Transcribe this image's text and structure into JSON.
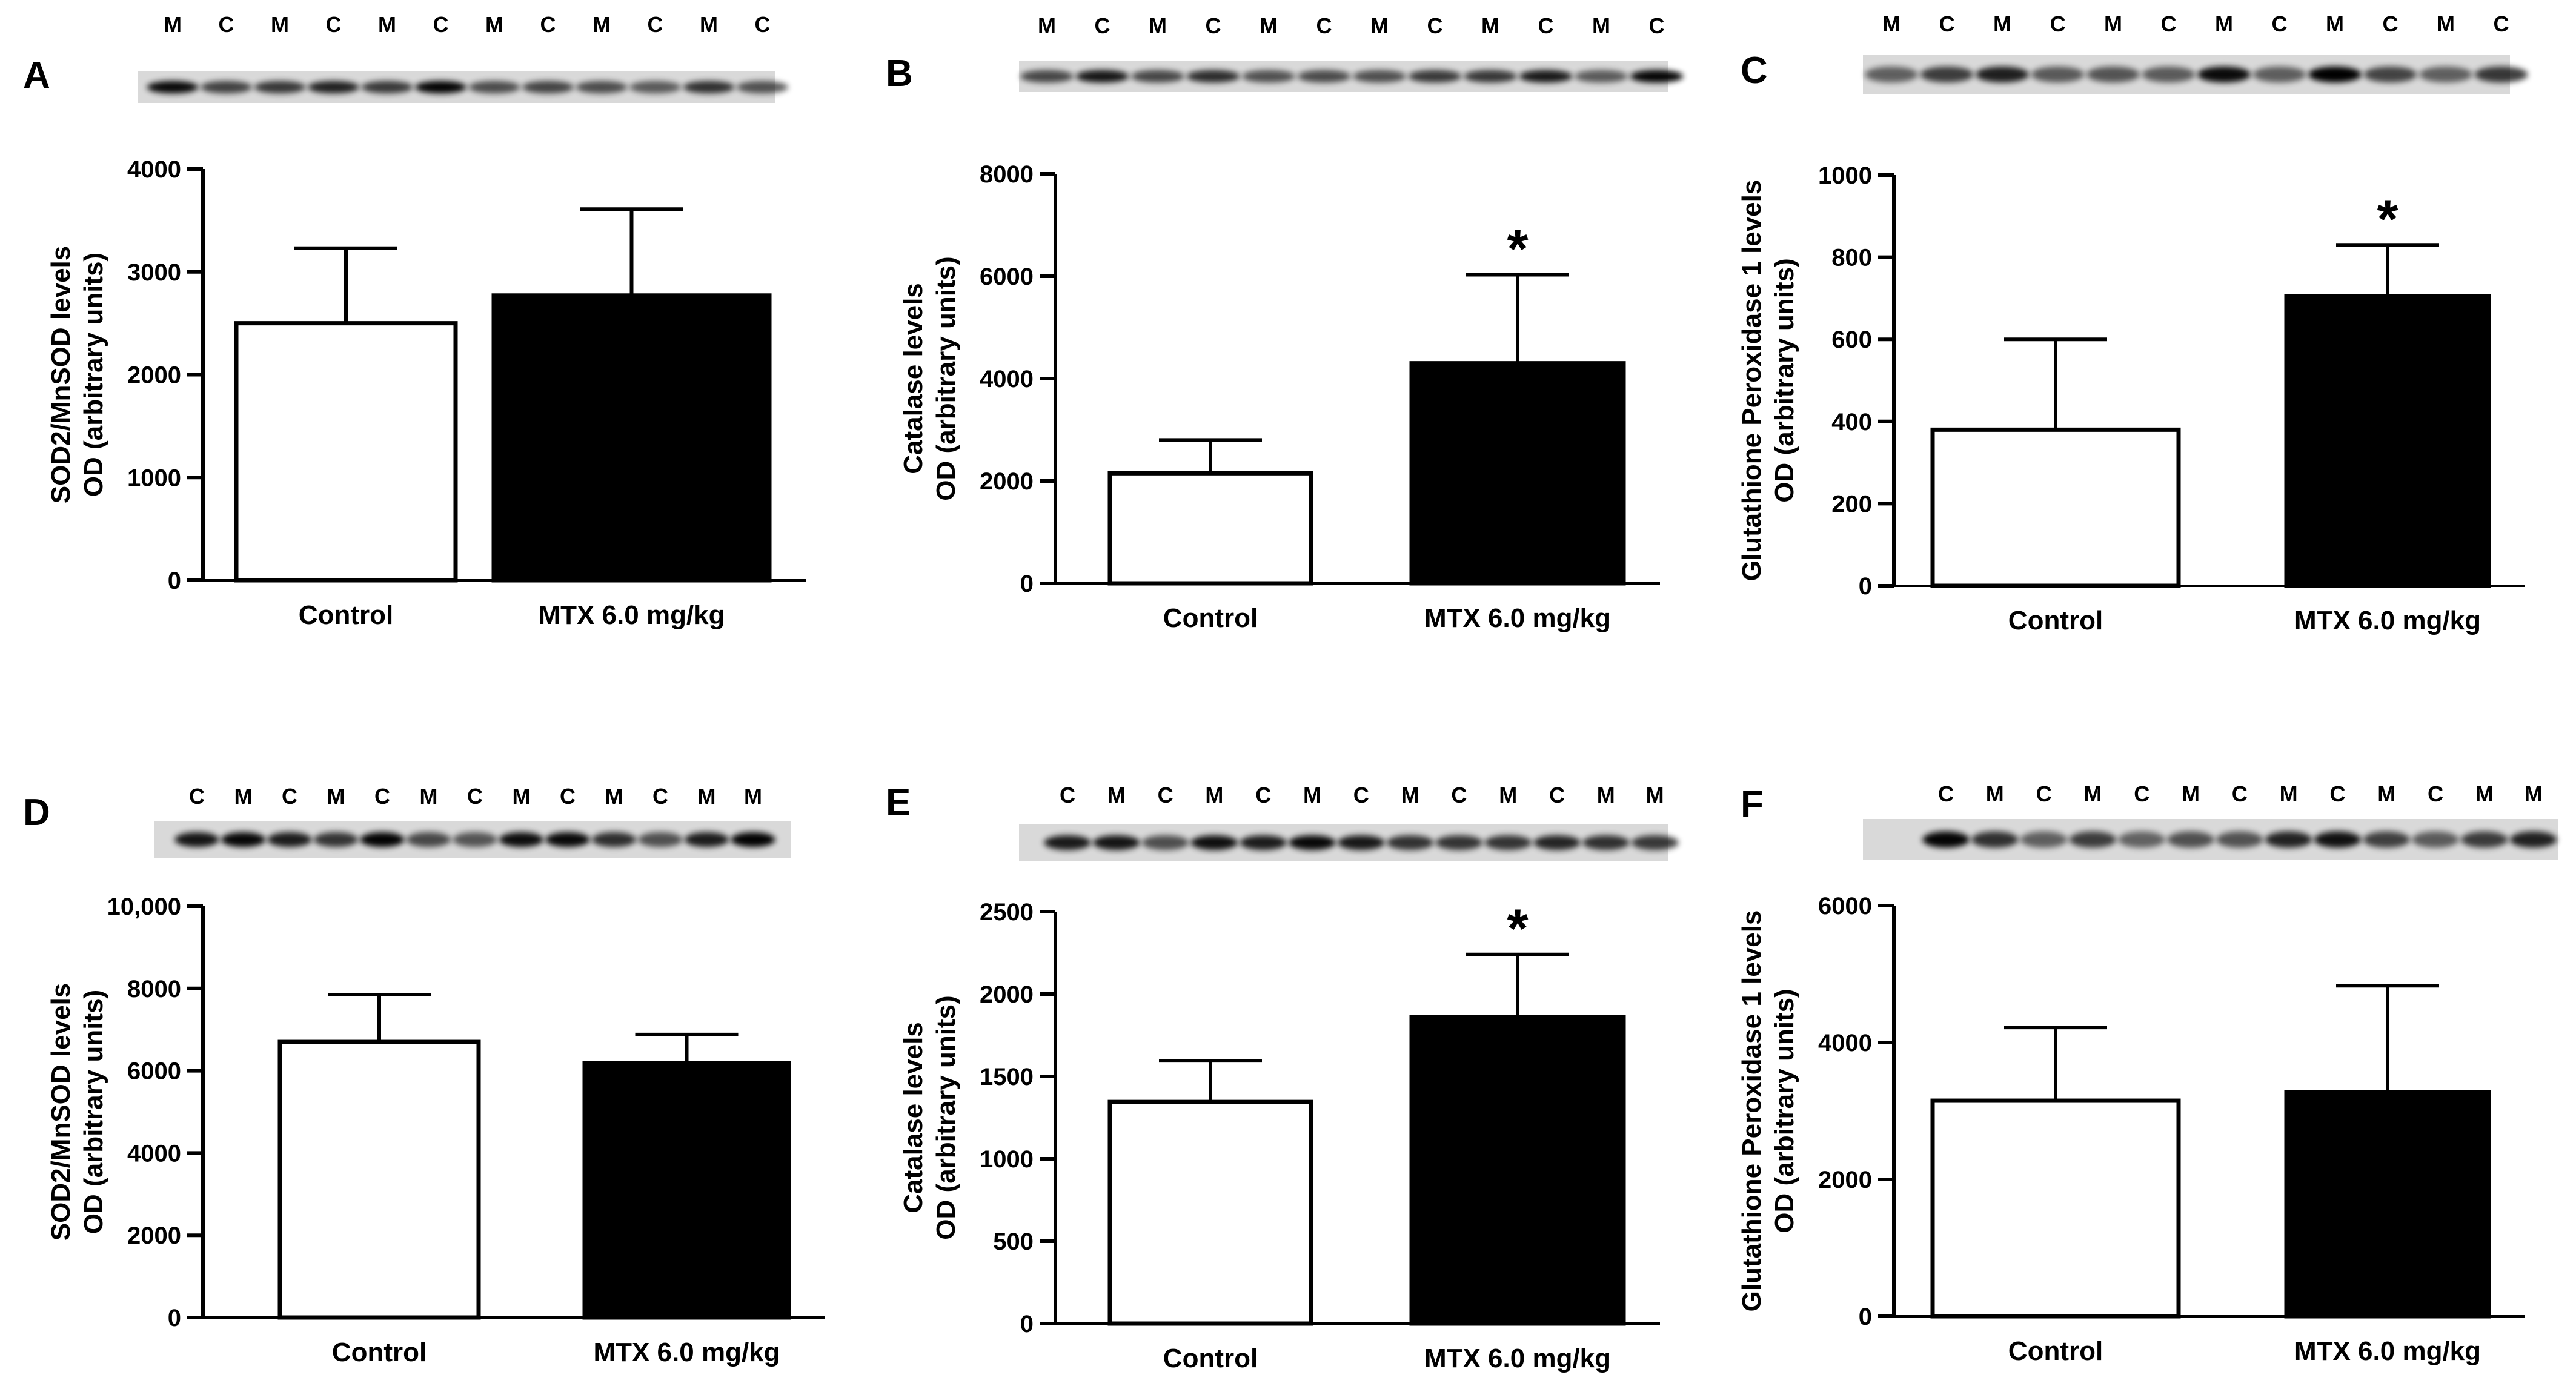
{
  "figure": {
    "lane_letter_control": "C",
    "lane_letter_mtx": "M"
  },
  "chart_data": [
    {
      "panel": "A",
      "type": "bar",
      "blot_lanes": [
        "M",
        "C",
        "M",
        "C",
        "M",
        "C",
        "M",
        "C",
        "M",
        "C",
        "M",
        "C"
      ],
      "categories": [
        "Control",
        "MTX 6.0 mg/kg"
      ],
      "values": [
        2500,
        2770
      ],
      "errors": [
        730,
        840
      ],
      "significant": [
        false,
        false
      ],
      "ylabel": [
        "SOD2/MnSOD levels",
        "OD (arbitrary units)"
      ],
      "ylim": [
        0,
        4000
      ],
      "yticks": [
        0,
        1000,
        2000,
        3000,
        4000
      ],
      "ytick_labels": [
        "0",
        "1000",
        "2000",
        "3000",
        "4000"
      ]
    },
    {
      "panel": "B",
      "type": "bar",
      "blot_lanes": [
        "M",
        "C",
        "M",
        "C",
        "M",
        "C",
        "M",
        "C",
        "M",
        "C",
        "M",
        "C"
      ],
      "categories": [
        "Control",
        "MTX 6.0 mg/kg"
      ],
      "values": [
        2150,
        4300
      ],
      "errors": [
        650,
        1730
      ],
      "significant": [
        false,
        true
      ],
      "ylabel": [
        "Catalase levels",
        "OD (arbitrary units)"
      ],
      "ylim": [
        0,
        8000
      ],
      "yticks": [
        0,
        2000,
        4000,
        6000,
        8000
      ],
      "ytick_labels": [
        "0",
        "2000",
        "4000",
        "6000",
        "8000"
      ]
    },
    {
      "panel": "C",
      "type": "bar",
      "blot_lanes": [
        "M",
        "C",
        "M",
        "C",
        "M",
        "C",
        "M",
        "C",
        "M",
        "C",
        "M",
        "C"
      ],
      "categories": [
        "Control",
        "MTX 6.0 mg/kg"
      ],
      "values": [
        380,
        705
      ],
      "errors": [
        220,
        125
      ],
      "significant": [
        false,
        true
      ],
      "ylabel": [
        "Glutathione Peroxidase 1 levels",
        "OD (arbitrary units)"
      ],
      "ylim": [
        0,
        1000
      ],
      "yticks": [
        0,
        200,
        400,
        600,
        800,
        1000
      ],
      "ytick_labels": [
        "0",
        "200",
        "400",
        "600",
        "800",
        "1000"
      ]
    },
    {
      "panel": "D",
      "type": "bar",
      "blot_lanes": [
        "C",
        "M",
        "C",
        "M",
        "C",
        "M",
        "C",
        "M",
        "C",
        "M",
        "C",
        "M",
        "M"
      ],
      "categories": [
        "Control",
        "MTX 6.0 mg/kg"
      ],
      "values": [
        6700,
        6180
      ],
      "errors": [
        1150,
        700
      ],
      "significant": [
        false,
        false
      ],
      "ylabel": [
        "SOD2/MnSOD levels",
        "OD (arbitrary units)"
      ],
      "ylim": [
        0,
        10000
      ],
      "yticks": [
        0,
        2000,
        4000,
        6000,
        8000,
        10000
      ],
      "ytick_labels": [
        "0",
        "2000",
        "4000",
        "6000",
        "8000",
        "10,000"
      ]
    },
    {
      "panel": "E",
      "type": "bar",
      "blot_lanes": [
        "C",
        "M",
        "C",
        "M",
        "C",
        "M",
        "C",
        "M",
        "C",
        "M",
        "C",
        "M",
        "M"
      ],
      "categories": [
        "Control",
        "MTX 6.0 mg/kg"
      ],
      "values": [
        1345,
        1860
      ],
      "errors": [
        250,
        380
      ],
      "significant": [
        false,
        true
      ],
      "ylabel": [
        "Catalase levels",
        "OD (arbitrary units)"
      ],
      "ylim": [
        0,
        2500
      ],
      "yticks": [
        0,
        500,
        1000,
        1500,
        2000,
        2500
      ],
      "ytick_labels": [
        "0",
        "500",
        "1000",
        "1500",
        "2000",
        "2500"
      ]
    },
    {
      "panel": "F",
      "type": "bar",
      "blot_lanes": [
        "C",
        "M",
        "C",
        "M",
        "C",
        "M",
        "C",
        "M",
        "C",
        "M",
        "C",
        "M",
        "M"
      ],
      "categories": [
        "Control",
        "MTX 6.0 mg/kg"
      ],
      "values": [
        3150,
        3270
      ],
      "errors": [
        1070,
        1560
      ],
      "significant": [
        false,
        false
      ],
      "ylabel": [
        "Glutathione Peroxidase 1 levels",
        "OD (arbitrary units)"
      ],
      "ylim": [
        0,
        6000
      ],
      "yticks": [
        0,
        2000,
        4000,
        6000
      ],
      "ytick_labels": [
        "0",
        "2000",
        "4000",
        "6000"
      ]
    }
  ]
}
